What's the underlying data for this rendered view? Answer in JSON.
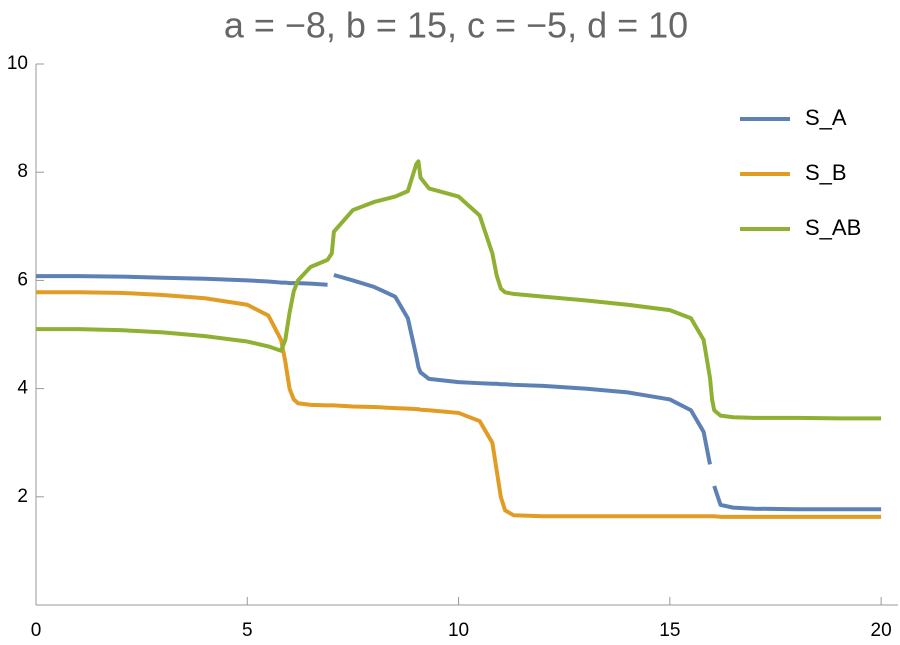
{
  "chart_data": {
    "type": "line",
    "title": "a = −8, b = 15, c = −5, d = 10",
    "x": [
      0,
      1,
      2,
      3,
      4,
      5,
      5.5,
      5.8,
      5.9,
      6,
      6.1,
      6.2,
      6.5,
      6.9,
      7,
      7.05,
      7.5,
      8,
      8.5,
      8.8,
      9,
      9.05,
      9.1,
      9.3,
      10,
      10.5,
      10.8,
      10.9,
      11,
      11.1,
      11.3,
      12,
      13,
      14,
      15,
      15.5,
      15.8,
      15.95,
      16,
      16.05,
      16.2,
      16.5,
      17,
      18,
      19,
      20
    ],
    "series": [
      {
        "name": "S_A",
        "color": "#5e81b5",
        "values": [
          6.08,
          6.08,
          6.07,
          6.05,
          6.03,
          6.0,
          5.98,
          5.96,
          5.96,
          5.95,
          5.95,
          5.95,
          5.94,
          5.92,
          null,
          6.1,
          6.0,
          5.88,
          5.7,
          5.3,
          4.6,
          4.4,
          4.3,
          4.18,
          4.12,
          4.1,
          4.09,
          4.09,
          4.08,
          4.08,
          4.07,
          4.05,
          4.0,
          3.93,
          3.8,
          3.6,
          3.2,
          2.6,
          null,
          2.2,
          1.85,
          1.8,
          1.78,
          1.77,
          1.77,
          1.77
        ]
      },
      {
        "name": "S_B",
        "color": "#e19c24",
        "values": [
          5.78,
          5.78,
          5.77,
          5.73,
          5.67,
          5.55,
          5.35,
          4.9,
          4.5,
          4.0,
          3.8,
          3.73,
          3.7,
          3.69,
          3.69,
          3.69,
          3.67,
          3.66,
          3.64,
          3.63,
          3.62,
          3.62,
          3.61,
          3.6,
          3.55,
          3.4,
          3.0,
          2.5,
          2.0,
          1.75,
          1.66,
          1.64,
          1.64,
          1.64,
          1.64,
          1.64,
          1.64,
          1.64,
          1.64,
          1.64,
          1.63,
          1.63,
          1.63,
          1.63,
          1.63,
          1.63
        ]
      },
      {
        "name": "S_AB",
        "color": "#8fb032",
        "values": [
          5.1,
          5.1,
          5.08,
          5.04,
          4.97,
          4.87,
          4.78,
          4.7,
          4.9,
          5.4,
          5.8,
          6.0,
          6.25,
          6.38,
          6.5,
          6.9,
          7.3,
          7.45,
          7.55,
          7.65,
          8.15,
          8.2,
          7.9,
          7.7,
          7.55,
          7.2,
          6.5,
          6.1,
          5.85,
          5.78,
          5.75,
          5.7,
          5.63,
          5.55,
          5.45,
          5.3,
          4.9,
          4.2,
          3.8,
          3.6,
          3.5,
          3.47,
          3.46,
          3.46,
          3.45,
          3.45
        ]
      }
    ],
    "xlim": [
      0,
      20.4
    ],
    "ylim": [
      0,
      10
    ],
    "xticks": [
      0,
      5,
      10,
      15,
      20
    ],
    "yticks": [
      2,
      4,
      6,
      8,
      10
    ],
    "legend": "top-right"
  }
}
